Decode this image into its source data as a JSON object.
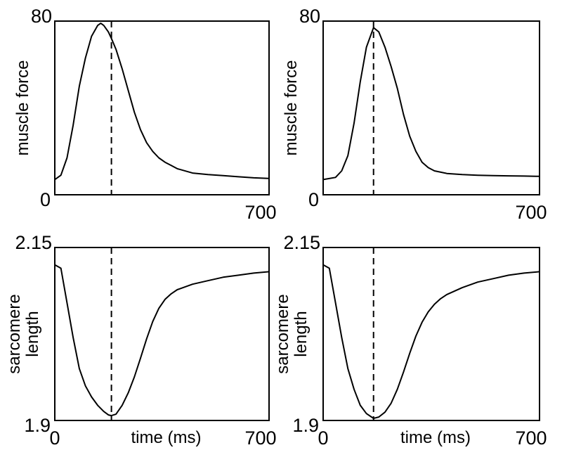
{
  "chart_data": [
    {
      "type": "line",
      "ylabel": "muscle force",
      "xlabel": "",
      "xlim": [
        0,
        700
      ],
      "ylim": [
        0,
        80
      ],
      "x_tick_labels": [
        "700"
      ],
      "y_tick_labels": [
        "0",
        "80"
      ],
      "marker_x": 185,
      "series": [
        {
          "x": [
            0,
            20,
            40,
            60,
            80,
            100,
            120,
            140,
            150,
            160,
            175,
            185,
            200,
            220,
            240,
            260,
            280,
            300,
            320,
            340,
            360,
            380,
            400,
            450,
            500,
            550,
            600,
            650,
            700
          ],
          "y": [
            7,
            9,
            17,
            32,
            50,
            63,
            73,
            78,
            79,
            78,
            75,
            72,
            67,
            58,
            48,
            38,
            30,
            24,
            20,
            17,
            15,
            13.5,
            12,
            10,
            9.3,
            8.8,
            8.3,
            7.8,
            7.5
          ]
        }
      ]
    },
    {
      "type": "line",
      "ylabel": "muscle force",
      "xlabel": "",
      "xlim": [
        0,
        700
      ],
      "ylim": [
        0,
        80
      ],
      "x_tick_labels": [
        "700"
      ],
      "y_tick_labels": [
        "0",
        "80"
      ],
      "marker_x": 163,
      "series": [
        {
          "x": [
            0,
            40,
            60,
            80,
            100,
            120,
            140,
            163,
            180,
            200,
            220,
            240,
            260,
            280,
            300,
            320,
            340,
            360,
            400,
            450,
            500,
            550,
            600,
            650,
            700
          ],
          "y": [
            7,
            8,
            11,
            18,
            33,
            52,
            68,
            77,
            75,
            68,
            59,
            49,
            37,
            27,
            20,
            15,
            12.5,
            11,
            9.8,
            9.3,
            9,
            8.8,
            8.7,
            8.6,
            8.5
          ]
        }
      ]
    },
    {
      "type": "line",
      "ylabel": "sarcomere length",
      "xlabel": "time (ms)",
      "xlim": [
        0,
        700
      ],
      "ylim": [
        1.9,
        2.15
      ],
      "x_tick_labels": [
        "0",
        "700"
      ],
      "y_tick_labels": [
        "2.15",
        "1.9"
      ],
      "marker_x": 185,
      "series": [
        {
          "x": [
            0,
            20,
            40,
            60,
            80,
            100,
            120,
            140,
            160,
            175,
            185,
            200,
            220,
            240,
            260,
            280,
            300,
            320,
            340,
            360,
            380,
            400,
            450,
            500,
            550,
            600,
            650,
            700
          ],
          "y": [
            2.125,
            2.12,
            2.07,
            2.02,
            1.975,
            1.95,
            1.934,
            1.922,
            1.913,
            1.908,
            1.907,
            1.909,
            1.922,
            1.94,
            1.963,
            1.99,
            2.018,
            2.043,
            2.062,
            2.075,
            2.083,
            2.089,
            2.097,
            2.102,
            2.107,
            2.11,
            2.113,
            2.115
          ]
        }
      ]
    },
    {
      "type": "line",
      "ylabel": "sarcomere length",
      "xlabel": "time (ms)",
      "xlim": [
        0,
        700
      ],
      "ylim": [
        1.9,
        2.15
      ],
      "x_tick_labels": [
        "0",
        "700"
      ],
      "y_tick_labels": [
        "2.15",
        "1.9"
      ],
      "marker_x": 163,
      "series": [
        {
          "x": [
            0,
            20,
            40,
            60,
            80,
            100,
            120,
            140,
            163,
            180,
            200,
            220,
            240,
            260,
            280,
            300,
            320,
            340,
            360,
            380,
            400,
            450,
            500,
            550,
            600,
            650,
            700
          ],
          "y": [
            2.125,
            2.12,
            2.07,
            2.02,
            1.975,
            1.945,
            1.922,
            1.91,
            1.903,
            1.905,
            1.912,
            1.925,
            1.945,
            1.97,
            1.997,
            2.022,
            2.042,
            2.057,
            2.068,
            2.076,
            2.082,
            2.092,
            2.1,
            2.105,
            2.11,
            2.113,
            2.115
          ]
        }
      ]
    }
  ]
}
